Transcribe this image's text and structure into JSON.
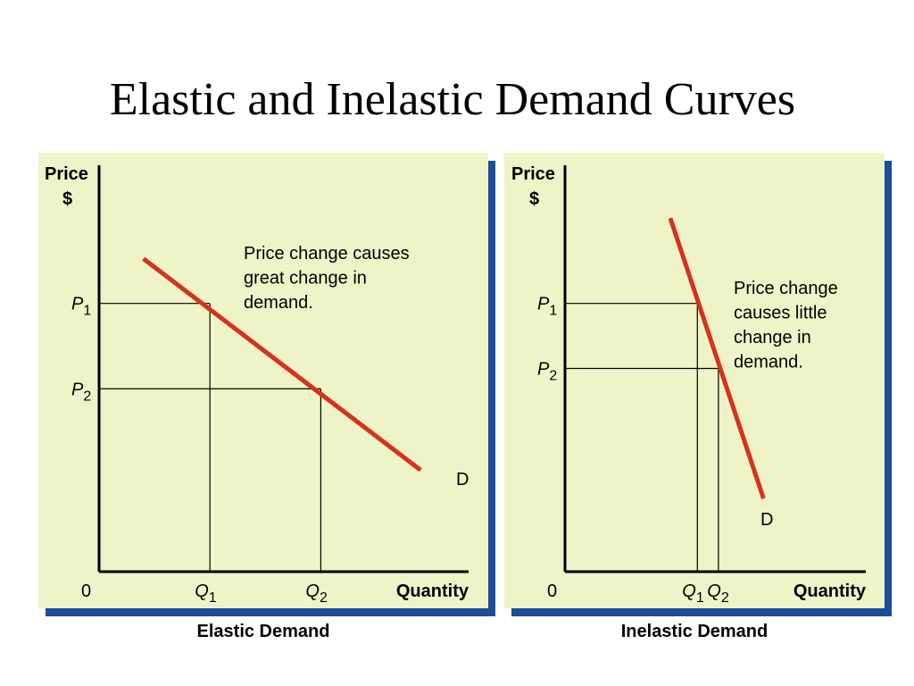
{
  "slide": {
    "title": "Elastic and Inelastic Demand Curves"
  },
  "colors": {
    "panel_bg": "#eef4c8",
    "panel_shadow": "#1b4d9a",
    "curve": "#d6321c",
    "axis": "#000000"
  },
  "chart_data": [
    {
      "type": "line",
      "title": "Elastic Demand",
      "ylabel": {
        "line1": "Price",
        "line2": "$"
      },
      "xlabel": "Quantity",
      "origin_label": "0",
      "xlim": [
        0,
        10
      ],
      "ylim": [
        0,
        10
      ],
      "demand": {
        "label": "D",
        "x": [
          1.2,
          8.7
        ],
        "y": [
          7.7,
          2.5
        ]
      },
      "prices": [
        {
          "sym": "P",
          "sub": "1",
          "value": 6.6
        },
        {
          "sym": "P",
          "sub": "2",
          "value": 4.5
        }
      ],
      "quantities": [
        {
          "sym": "Q",
          "sub": "1",
          "value": 3.0
        },
        {
          "sym": "Q",
          "sub": "2",
          "value": 6.0
        }
      ],
      "annotation": [
        "Price change causes",
        "great change in",
        "demand."
      ]
    },
    {
      "type": "line",
      "title": "Inelastic Demand",
      "ylabel": {
        "line1": "Price",
        "line2": "$"
      },
      "xlabel": "Quantity",
      "origin_label": "0",
      "xlim": [
        0,
        10
      ],
      "ylim": [
        0,
        10
      ],
      "demand": {
        "label": "D",
        "x": [
          3.5,
          6.6
        ],
        "y": [
          8.7,
          1.8
        ]
      },
      "prices": [
        {
          "sym": "P",
          "sub": "1",
          "value": 6.6
        },
        {
          "sym": "P",
          "sub": "2",
          "value": 5.0
        }
      ],
      "quantities": [
        {
          "sym": "Q",
          "sub": "1",
          "value": 4.4
        },
        {
          "sym": "Q",
          "sub": "2",
          "value": 5.1
        }
      ],
      "annotation": [
        "Price change",
        "causes little",
        "change in",
        "demand."
      ]
    }
  ]
}
